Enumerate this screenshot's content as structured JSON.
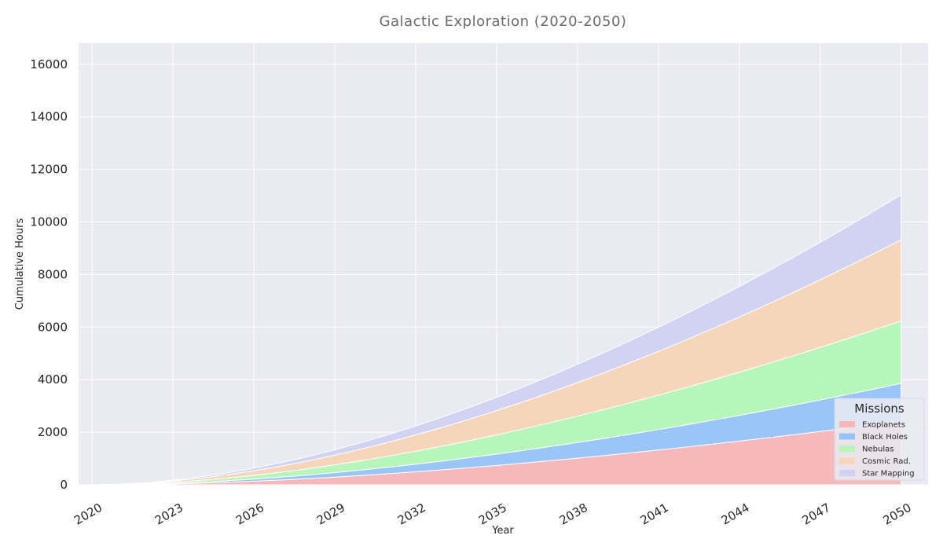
{
  "chart_data": {
    "type": "area",
    "stacked": true,
    "title": "Galactic Exploration (2020-2050)",
    "xlabel": "Year",
    "ylabel": "Cumulative Hours",
    "x": [
      2020,
      2021,
      2022,
      2023,
      2024,
      2025,
      2026,
      2027,
      2028,
      2029,
      2030,
      2031,
      2032,
      2033,
      2034,
      2035,
      2036,
      2037,
      2038,
      2039,
      2040,
      2041,
      2042,
      2043,
      2044,
      2045,
      2046,
      2047,
      2048,
      2049,
      2050
    ],
    "xticks": [
      2020,
      2023,
      2026,
      2029,
      2032,
      2035,
      2038,
      2041,
      2044,
      2047,
      2050
    ],
    "xlim": [
      2019.5,
      2051
    ],
    "ylim": [
      0,
      16800
    ],
    "yticks": [
      0,
      2000,
      4000,
      6000,
      8000,
      10000,
      12000,
      14000,
      16000
    ],
    "grid": true,
    "series": [
      {
        "name": "Exoplanets",
        "color": "#f7b5b6",
        "values": [
          0,
          4,
          16,
          36,
          63,
          97,
          137,
          183,
          235,
          293,
          355,
          423,
          495,
          571,
          652,
          737,
          825,
          918,
          1014,
          1114,
          1217,
          1323,
          1433,
          1546,
          1662,
          1781,
          1903,
          2028,
          2156,
          2286,
          2420
        ]
      },
      {
        "name": "Black Holes",
        "color": "#95c3f7",
        "values": [
          0,
          2,
          10,
          21,
          37,
          57,
          80,
          107,
          137,
          171,
          208,
          247,
          290,
          335,
          382,
          432,
          484,
          539,
          595,
          654,
          716,
          779,
          844,
          911,
          981,
          1052,
          1125,
          1200,
          1277,
          1356,
          1437
        ]
      },
      {
        "name": "Nebulas",
        "color": "#b4f7b6",
        "values": [
          0,
          6,
          19,
          40,
          67,
          101,
          141,
          187,
          238,
          295,
          356,
          423,
          494,
          569,
          649,
          732,
          819,
          910,
          1005,
          1103,
          1204,
          1308,
          1416,
          1527,
          1640,
          1757,
          1877,
          1999,
          2124,
          2252,
          2383
        ]
      },
      {
        "name": "Cosmic Rad.",
        "color": "#f7d5b6",
        "values": [
          0,
          6,
          22,
          49,
          84,
          126,
          176,
          233,
          297,
          368,
          445,
          529,
          618,
          714,
          815,
          921,
          1033,
          1150,
          1272,
          1398,
          1530,
          1666,
          1806,
          1951,
          2100,
          2254,
          2411,
          2573,
          2738,
          2907,
          3080
        ]
      },
      {
        "name": "Star Mapping",
        "color": "#d1d1f2",
        "values": [
          0,
          4,
          13,
          28,
          47,
          70,
          98,
          129,
          164,
          202,
          245,
          290,
          339,
          391,
          446,
          504,
          566,
          630,
          697,
          767,
          840,
          916,
          995,
          1076,
          1160,
          1246,
          1335,
          1427,
          1521,
          1618,
          1717
        ]
      }
    ],
    "legend": {
      "title": "Missions",
      "placement": "bottom-right"
    }
  }
}
